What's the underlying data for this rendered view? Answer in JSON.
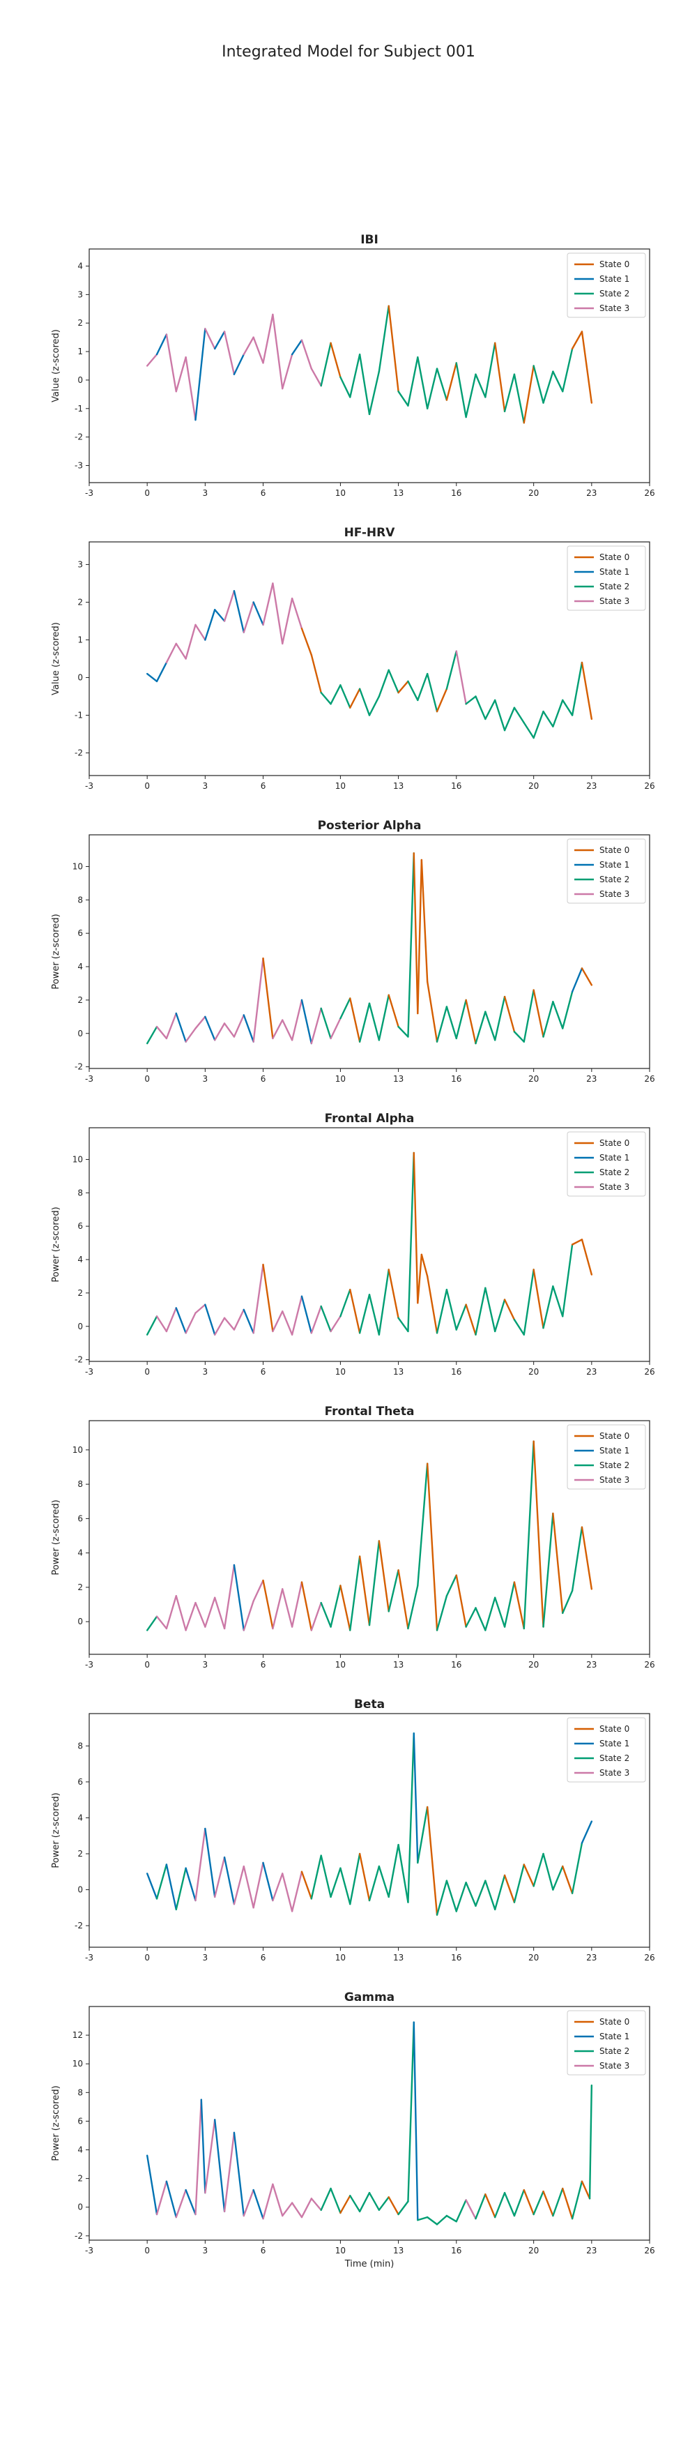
{
  "figure": {
    "title": "Integrated Model for Subject 001"
  },
  "colors": {
    "State 0": "#d55e00",
    "State 1": "#0072b2",
    "State 2": "#009e73",
    "State 3": "#cc79a7"
  },
  "chart_data": [
    {
      "type": "line",
      "title": "IBI",
      "xlabel": "",
      "ylabel": "Value (z-scored)",
      "xlim": [
        -3,
        26
      ],
      "ylim": [
        -3.6,
        4.6
      ],
      "xticks": [
        -3,
        0,
        3,
        6,
        10,
        13,
        16,
        20,
        23,
        26
      ],
      "yticks": [
        -3,
        -2,
        -1,
        0,
        1,
        2,
        3,
        4
      ],
      "legend": "top-right",
      "series_names": [
        "State 0",
        "State 1",
        "State 2",
        "State 3"
      ],
      "x": [
        0.0,
        0.5,
        1.0,
        1.5,
        2.0,
        2.5,
        3.0,
        3.5,
        4.0,
        4.5,
        5.0,
        5.5,
        6.0,
        6.5,
        7.0,
        7.5,
        8.0,
        8.5,
        9.0,
        9.5,
        10.0,
        10.5,
        11.0,
        11.5,
        12.0,
        12.5,
        13.0,
        13.5,
        14.0,
        14.5,
        15.0,
        15.5,
        16.0,
        16.5,
        17.0,
        17.5,
        18.0,
        18.5,
        19.0,
        19.5,
        20.0,
        20.5,
        21.0,
        21.5,
        22.0,
        22.5,
        23.0
      ],
      "y": [
        0.5,
        0.9,
        1.6,
        -0.4,
        0.8,
        -1.4,
        1.8,
        1.1,
        1.7,
        0.2,
        0.9,
        1.5,
        0.6,
        2.3,
        -0.3,
        0.9,
        1.4,
        0.4,
        -0.2,
        1.3,
        0.1,
        -0.6,
        0.9,
        -1.2,
        0.3,
        2.6,
        -0.4,
        -0.9,
        0.8,
        -1.0,
        0.4,
        -0.7,
        0.6,
        -1.3,
        0.2,
        -0.6,
        1.3,
        -1.1,
        0.2,
        -1.5,
        0.5,
        -0.8,
        0.3,
        -0.4,
        1.1,
        1.7,
        -0.8
      ],
      "states": [
        3,
        1,
        3,
        3,
        3,
        1,
        3,
        1,
        3,
        1,
        3,
        3,
        3,
        3,
        3,
        1,
        3,
        3,
        2,
        0,
        2,
        2,
        2,
        2,
        2,
        0,
        2,
        2,
        2,
        2,
        2,
        0,
        2,
        2,
        2,
        2,
        0,
        2,
        2,
        0,
        2,
        2,
        2,
        2,
        0,
        0,
        2
      ]
    },
    {
      "type": "line",
      "title": "HF-HRV",
      "xlabel": "",
      "ylabel": "Value (z-scored)",
      "xlim": [
        -3,
        26
      ],
      "ylim": [
        -2.6,
        3.6
      ],
      "xticks": [
        -3,
        0,
        3,
        6,
        10,
        13,
        16,
        20,
        23,
        26
      ],
      "yticks": [
        -2,
        -1,
        0,
        1,
        2,
        3
      ],
      "legend": "top-right",
      "series_names": [
        "State 0",
        "State 1",
        "State 2",
        "State 3"
      ],
      "x": [
        0.0,
        0.5,
        1.0,
        1.5,
        2.0,
        2.5,
        3.0,
        3.5,
        4.0,
        4.5,
        5.0,
        5.5,
        6.0,
        6.5,
        7.0,
        7.5,
        8.0,
        8.5,
        9.0,
        9.5,
        10.0,
        10.5,
        11.0,
        11.5,
        12.0,
        12.5,
        13.0,
        13.5,
        14.0,
        14.5,
        15.0,
        15.5,
        16.0,
        16.5,
        17.0,
        17.5,
        18.0,
        18.5,
        19.0,
        19.5,
        20.0,
        20.5,
        21.0,
        21.5,
        22.0,
        22.5,
        23.0
      ],
      "y": [
        0.1,
        -0.1,
        0.4,
        0.9,
        0.5,
        1.4,
        1.0,
        1.8,
        1.5,
        2.3,
        1.2,
        2.0,
        1.4,
        2.5,
        0.9,
        2.1,
        1.3,
        0.6,
        -0.4,
        -0.7,
        -0.2,
        -0.8,
        -0.3,
        -1.0,
        -0.5,
        0.2,
        -0.4,
        -0.1,
        -0.6,
        0.1,
        -0.9,
        -0.3,
        0.7,
        -0.7,
        -0.5,
        -1.1,
        -0.6,
        -1.4,
        -0.8,
        -1.2,
        -1.6,
        -0.9,
        -1.3,
        -0.6,
        -1.0,
        0.4,
        -1.1
      ],
      "states": [
        1,
        1,
        3,
        3,
        3,
        3,
        1,
        1,
        3,
        1,
        3,
        1,
        3,
        3,
        3,
        3,
        0,
        0,
        2,
        2,
        2,
        0,
        2,
        2,
        2,
        2,
        0,
        2,
        2,
        2,
        0,
        2,
        3,
        2,
        2,
        2,
        2,
        2,
        2,
        2,
        2,
        2,
        2,
        2,
        2,
        0,
        0
      ]
    },
    {
      "type": "line",
      "title": "Posterior Alpha",
      "xlabel": "",
      "ylabel": "Power (z-scored)",
      "xlim": [
        -3,
        26
      ],
      "ylim": [
        -2.1,
        11.9
      ],
      "xticks": [
        -3,
        0,
        3,
        6,
        10,
        13,
        16,
        20,
        23,
        26
      ],
      "yticks": [
        -2,
        0,
        2,
        4,
        6,
        8,
        10
      ],
      "legend": "top-right",
      "series_names": [
        "State 0",
        "State 1",
        "State 2",
        "State 3"
      ],
      "x": [
        0.0,
        0.5,
        1.0,
        1.5,
        2.0,
        2.5,
        3.0,
        3.5,
        4.0,
        4.5,
        5.0,
        5.5,
        6.0,
        6.5,
        7.0,
        7.5,
        8.0,
        8.5,
        9.0,
        9.5,
        10.0,
        10.5,
        11.0,
        11.5,
        12.0,
        12.5,
        13.0,
        13.5,
        13.8,
        14.0,
        14.2,
        14.5,
        15.0,
        15.5,
        16.0,
        16.5,
        17.0,
        17.5,
        18.0,
        18.5,
        19.0,
        19.5,
        20.0,
        20.5,
        21.0,
        21.5,
        22.0,
        22.5,
        23.0
      ],
      "y": [
        -0.6,
        0.4,
        -0.3,
        1.2,
        -0.5,
        0.3,
        1.0,
        -0.4,
        0.6,
        -0.2,
        1.1,
        -0.5,
        4.5,
        -0.3,
        0.8,
        -0.4,
        2.0,
        -0.6,
        1.5,
        -0.3,
        0.9,
        2.1,
        -0.5,
        1.8,
        -0.4,
        2.3,
        0.4,
        -0.2,
        10.8,
        1.2,
        10.4,
        3.1,
        -0.5,
        1.6,
        -0.3,
        2.0,
        -0.6,
        1.3,
        -0.4,
        2.2,
        0.1,
        -0.5,
        2.6,
        -0.2,
        1.9,
        0.3,
        2.5,
        3.9,
        2.9
      ],
      "states": [
        2,
        3,
        3,
        1,
        3,
        3,
        1,
        3,
        3,
        3,
        1,
        3,
        0,
        3,
        3,
        3,
        1,
        3,
        2,
        3,
        2,
        0,
        2,
        2,
        2,
        0,
        2,
        2,
        0,
        0,
        0,
        0,
        2,
        2,
        2,
        0,
        2,
        2,
        2,
        0,
        2,
        2,
        0,
        2,
        2,
        2,
        1,
        0,
        0
      ]
    },
    {
      "type": "line",
      "title": "Frontal Alpha",
      "xlabel": "",
      "ylabel": "Power (z-scored)",
      "xlim": [
        -3,
        26
      ],
      "ylim": [
        -2.1,
        11.9
      ],
      "xticks": [
        -3,
        0,
        3,
        6,
        10,
        13,
        16,
        20,
        23,
        26
      ],
      "yticks": [
        -2,
        0,
        2,
        4,
        6,
        8,
        10
      ],
      "legend": "top-right",
      "series_names": [
        "State 0",
        "State 1",
        "State 2",
        "State 3"
      ],
      "x": [
        0.0,
        0.5,
        1.0,
        1.5,
        2.0,
        2.5,
        3.0,
        3.5,
        4.0,
        4.5,
        5.0,
        5.5,
        6.0,
        6.5,
        7.0,
        7.5,
        8.0,
        8.5,
        9.0,
        9.5,
        10.0,
        10.5,
        11.0,
        11.5,
        12.0,
        12.5,
        13.0,
        13.5,
        13.8,
        14.0,
        14.2,
        14.5,
        15.0,
        15.5,
        16.0,
        16.5,
        17.0,
        17.5,
        18.0,
        18.5,
        19.0,
        19.5,
        20.0,
        20.5,
        21.0,
        21.5,
        22.0,
        22.5,
        23.0
      ],
      "y": [
        -0.5,
        0.6,
        -0.3,
        1.1,
        -0.4,
        0.8,
        1.3,
        -0.5,
        0.5,
        -0.2,
        1.0,
        -0.4,
        3.7,
        -0.3,
        0.9,
        -0.5,
        1.8,
        -0.4,
        1.2,
        -0.3,
        0.6,
        2.2,
        -0.4,
        1.9,
        -0.5,
        3.4,
        0.5,
        -0.3,
        10.4,
        1.4,
        4.3,
        3.0,
        -0.4,
        2.2,
        -0.2,
        1.3,
        -0.5,
        2.3,
        -0.3,
        1.6,
        0.4,
        -0.5,
        3.4,
        -0.1,
        2.4,
        0.6,
        4.9,
        5.2,
        3.1
      ],
      "states": [
        2,
        3,
        3,
        1,
        3,
        3,
        1,
        3,
        3,
        3,
        1,
        3,
        0,
        3,
        3,
        3,
        1,
        3,
        2,
        3,
        2,
        0,
        2,
        2,
        2,
        0,
        2,
        2,
        0,
        0,
        0,
        0,
        2,
        2,
        2,
        0,
        2,
        2,
        2,
        0,
        2,
        2,
        0,
        2,
        2,
        2,
        0,
        0,
        0
      ]
    },
    {
      "type": "line",
      "title": "Frontal Theta",
      "xlabel": "",
      "ylabel": "Power (z-scored)",
      "xlim": [
        -3,
        26
      ],
      "ylim": [
        -1.9,
        11.7
      ],
      "xticks": [
        -3,
        0,
        3,
        6,
        10,
        13,
        16,
        20,
        23,
        26
      ],
      "yticks": [
        0,
        2,
        4,
        6,
        8,
        10
      ],
      "legend": "top-right",
      "series_names": [
        "State 0",
        "State 1",
        "State 2",
        "State 3"
      ],
      "x": [
        0.0,
        0.5,
        1.0,
        1.5,
        2.0,
        2.5,
        3.0,
        3.5,
        4.0,
        4.5,
        5.0,
        5.5,
        6.0,
        6.5,
        7.0,
        7.5,
        8.0,
        8.5,
        9.0,
        9.5,
        10.0,
        10.5,
        11.0,
        11.5,
        12.0,
        12.5,
        13.0,
        13.5,
        14.0,
        14.5,
        15.0,
        15.5,
        16.0,
        16.5,
        17.0,
        17.5,
        18.0,
        18.5,
        19.0,
        19.5,
        20.0,
        20.5,
        21.0,
        21.5,
        22.0,
        22.5,
        23.0
      ],
      "y": [
        -0.5,
        0.3,
        -0.4,
        1.5,
        -0.5,
        1.1,
        -0.3,
        1.4,
        -0.4,
        3.3,
        -0.5,
        1.2,
        2.4,
        -0.4,
        1.9,
        -0.3,
        2.3,
        -0.5,
        1.1,
        -0.3,
        2.1,
        -0.5,
        3.8,
        -0.2,
        4.7,
        0.6,
        3.0,
        -0.4,
        2.1,
        9.2,
        -0.5,
        1.5,
        2.7,
        -0.3,
        0.8,
        -0.5,
        1.4,
        -0.3,
        2.3,
        -0.4,
        10.5,
        -0.3,
        6.3,
        0.5,
        1.8,
        5.5,
        1.9
      ],
      "states": [
        2,
        3,
        3,
        3,
        3,
        3,
        3,
        3,
        3,
        1,
        3,
        3,
        0,
        3,
        3,
        3,
        0,
        3,
        2,
        2,
        0,
        2,
        0,
        2,
        0,
        2,
        0,
        2,
        2,
        0,
        2,
        2,
        0,
        2,
        2,
        2,
        2,
        2,
        0,
        2,
        0,
        2,
        0,
        2,
        2,
        0,
        1
      ]
    },
    {
      "type": "line",
      "title": "Beta",
      "xlabel": "",
      "ylabel": "Power (z-scored)",
      "xlim": [
        -3,
        26
      ],
      "ylim": [
        -3.2,
        9.8
      ],
      "xticks": [
        -3,
        0,
        3,
        6,
        10,
        13,
        16,
        20,
        23,
        26
      ],
      "yticks": [
        -2,
        0,
        2,
        4,
        6,
        8
      ],
      "legend": "top-right",
      "series_names": [
        "State 0",
        "State 1",
        "State 2",
        "State 3"
      ],
      "x": [
        0.0,
        0.5,
        1.0,
        1.5,
        2.0,
        2.5,
        3.0,
        3.5,
        4.0,
        4.5,
        5.0,
        5.5,
        6.0,
        6.5,
        7.0,
        7.5,
        8.0,
        8.5,
        9.0,
        9.5,
        10.0,
        10.5,
        11.0,
        11.5,
        12.0,
        12.5,
        13.0,
        13.5,
        13.8,
        14.0,
        14.5,
        15.0,
        15.5,
        16.0,
        16.5,
        17.0,
        17.5,
        18.0,
        18.5,
        19.0,
        19.5,
        20.0,
        20.5,
        21.0,
        21.5,
        22.0,
        22.5,
        23.0
      ],
      "y": [
        0.9,
        -0.5,
        1.4,
        -1.1,
        1.2,
        -0.6,
        3.4,
        -0.4,
        1.8,
        -0.8,
        1.3,
        -1.0,
        1.5,
        -0.6,
        0.9,
        -1.2,
        1.0,
        -0.5,
        1.9,
        -0.4,
        1.2,
        -0.8,
        2.0,
        -0.6,
        1.3,
        -0.4,
        2.5,
        -0.7,
        8.7,
        1.5,
        4.6,
        -1.4,
        0.5,
        -1.2,
        0.4,
        -0.9,
        0.5,
        -1.1,
        0.8,
        -0.7,
        1.4,
        0.2,
        2.0,
        0.0,
        1.3,
        -0.2,
        2.6,
        3.8
      ],
      "states": [
        1,
        2,
        1,
        2,
        1,
        3,
        1,
        3,
        1,
        3,
        3,
        3,
        1,
        3,
        3,
        3,
        0,
        2,
        2,
        2,
        2,
        2,
        0,
        2,
        2,
        2,
        2,
        2,
        1,
        2,
        0,
        2,
        2,
        2,
        2,
        2,
        2,
        2,
        0,
        2,
        0,
        2,
        2,
        2,
        0,
        2,
        1,
        0
      ]
    },
    {
      "type": "line",
      "title": "Gamma",
      "xlabel": "Time (min)",
      "ylabel": "Power (z-scored)",
      "xlim": [
        -3,
        26
      ],
      "ylim": [
        -2.3,
        14.0
      ],
      "xticks": [
        -3,
        0,
        3,
        6,
        10,
        13,
        16,
        20,
        23,
        26
      ],
      "yticks": [
        -2,
        0,
        2,
        4,
        6,
        8,
        10,
        12
      ],
      "legend": "top-right",
      "series_names": [
        "State 0",
        "State 1",
        "State 2",
        "State 3"
      ],
      "x": [
        0.0,
        0.5,
        1.0,
        1.5,
        2.0,
        2.5,
        2.8,
        3.0,
        3.5,
        4.0,
        4.5,
        5.0,
        5.5,
        6.0,
        6.5,
        7.0,
        7.5,
        8.0,
        8.5,
        9.0,
        9.5,
        10.0,
        10.5,
        11.0,
        11.5,
        12.0,
        12.5,
        13.0,
        13.5,
        13.8,
        14.0,
        14.5,
        15.0,
        15.5,
        16.0,
        16.5,
        17.0,
        17.5,
        18.0,
        18.5,
        19.0,
        19.5,
        20.0,
        20.5,
        21.0,
        21.5,
        22.0,
        22.5,
        22.9,
        23.0
      ],
      "y": [
        3.6,
        -0.5,
        1.8,
        -0.7,
        1.2,
        -0.5,
        7.5,
        1.0,
        6.1,
        -0.3,
        5.2,
        -0.6,
        1.2,
        -0.8,
        1.6,
        -0.6,
        0.3,
        -0.7,
        0.6,
        -0.2,
        1.3,
        -0.4,
        0.8,
        -0.3,
        1.0,
        -0.2,
        0.7,
        -0.5,
        0.4,
        12.9,
        -0.9,
        -0.7,
        -1.2,
        -0.6,
        -1.0,
        0.5,
        -0.8,
        0.9,
        -0.7,
        1.0,
        -0.6,
        1.2,
        -0.5,
        1.1,
        -0.6,
        1.3,
        -0.8,
        1.8,
        0.6,
        8.5
      ],
      "states": [
        1,
        3,
        1,
        3,
        1,
        3,
        1,
        3,
        1,
        3,
        1,
        3,
        1,
        3,
        3,
        3,
        3,
        3,
        3,
        2,
        2,
        0,
        2,
        2,
        2,
        2,
        0,
        2,
        2,
        1,
        2,
        2,
        2,
        2,
        2,
        3,
        2,
        0,
        2,
        2,
        2,
        0,
        2,
        0,
        2,
        0,
        2,
        0,
        2,
        1
      ]
    }
  ]
}
